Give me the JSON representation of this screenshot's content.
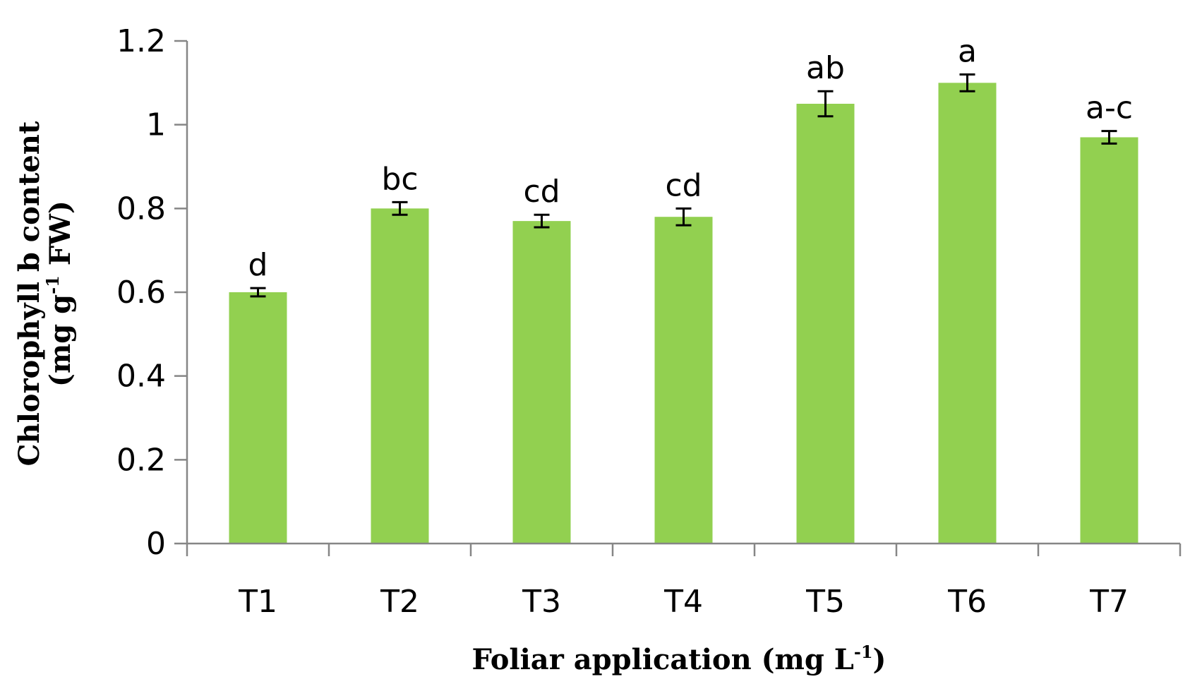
{
  "chart_data": {
    "type": "bar",
    "categories": [
      "T1",
      "T2",
      "T3",
      "T4",
      "T5",
      "T6",
      "T7"
    ],
    "values": [
      0.6,
      0.8,
      0.77,
      0.78,
      1.05,
      1.1,
      0.97
    ],
    "errors": [
      0.01,
      0.015,
      0.015,
      0.02,
      0.03,
      0.02,
      0.015
    ],
    "significance_labels": [
      "d",
      "bc",
      "cd",
      "cd",
      "ab",
      "a",
      "a-c"
    ],
    "ylim": [
      0,
      1.2
    ],
    "yticks": [
      0,
      0.2,
      0.4,
      0.6,
      0.8,
      1,
      1.2
    ],
    "ytick_labels": [
      "0",
      "0.2",
      "0.4",
      "0.6",
      "0.8",
      "1",
      "1.2"
    ],
    "xlabel_main": "Foliar application (mg L",
    "xlabel_sup": "-1",
    "xlabel_end": ")",
    "ylabel_line1": "Chlorophyll b content",
    "ylabel_line2_main": "(mg g",
    "ylabel_line2_sup": "-1",
    "ylabel_line2_end": " FW)",
    "grid": false,
    "legend": "none",
    "bar_color": "#92d050",
    "axis_color": "#868686",
    "error_color": "#000000"
  }
}
